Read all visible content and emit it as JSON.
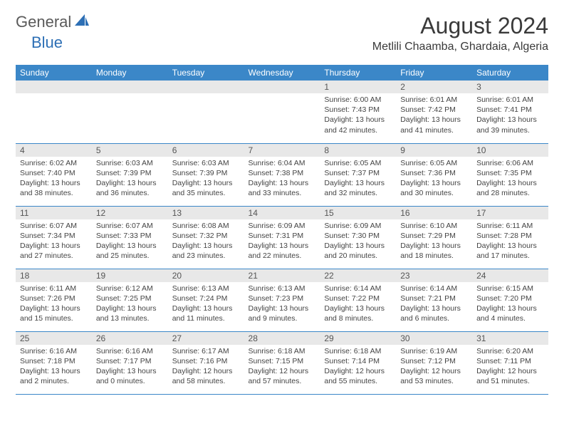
{
  "logo": {
    "text1": "General",
    "text2": "Blue"
  },
  "title": "August 2024",
  "location": "Metlili Chaamba, Ghardaia, Algeria",
  "colors": {
    "header_blue": "#3b87c8",
    "daynum_bg": "#e8e8e8",
    "text": "#444444",
    "logo_gray": "#5a5a5a",
    "logo_blue": "#2d6fb5"
  },
  "weekdays": [
    "Sunday",
    "Monday",
    "Tuesday",
    "Wednesday",
    "Thursday",
    "Friday",
    "Saturday"
  ],
  "weeks": [
    [
      null,
      null,
      null,
      null,
      {
        "n": "1",
        "sr": "Sunrise: 6:00 AM",
        "ss": "Sunset: 7:43 PM",
        "dl": "Daylight: 13 hours and 42 minutes."
      },
      {
        "n": "2",
        "sr": "Sunrise: 6:01 AM",
        "ss": "Sunset: 7:42 PM",
        "dl": "Daylight: 13 hours and 41 minutes."
      },
      {
        "n": "3",
        "sr": "Sunrise: 6:01 AM",
        "ss": "Sunset: 7:41 PM",
        "dl": "Daylight: 13 hours and 39 minutes."
      }
    ],
    [
      {
        "n": "4",
        "sr": "Sunrise: 6:02 AM",
        "ss": "Sunset: 7:40 PM",
        "dl": "Daylight: 13 hours and 38 minutes."
      },
      {
        "n": "5",
        "sr": "Sunrise: 6:03 AM",
        "ss": "Sunset: 7:39 PM",
        "dl": "Daylight: 13 hours and 36 minutes."
      },
      {
        "n": "6",
        "sr": "Sunrise: 6:03 AM",
        "ss": "Sunset: 7:39 PM",
        "dl": "Daylight: 13 hours and 35 minutes."
      },
      {
        "n": "7",
        "sr": "Sunrise: 6:04 AM",
        "ss": "Sunset: 7:38 PM",
        "dl": "Daylight: 13 hours and 33 minutes."
      },
      {
        "n": "8",
        "sr": "Sunrise: 6:05 AM",
        "ss": "Sunset: 7:37 PM",
        "dl": "Daylight: 13 hours and 32 minutes."
      },
      {
        "n": "9",
        "sr": "Sunrise: 6:05 AM",
        "ss": "Sunset: 7:36 PM",
        "dl": "Daylight: 13 hours and 30 minutes."
      },
      {
        "n": "10",
        "sr": "Sunrise: 6:06 AM",
        "ss": "Sunset: 7:35 PM",
        "dl": "Daylight: 13 hours and 28 minutes."
      }
    ],
    [
      {
        "n": "11",
        "sr": "Sunrise: 6:07 AM",
        "ss": "Sunset: 7:34 PM",
        "dl": "Daylight: 13 hours and 27 minutes."
      },
      {
        "n": "12",
        "sr": "Sunrise: 6:07 AM",
        "ss": "Sunset: 7:33 PM",
        "dl": "Daylight: 13 hours and 25 minutes."
      },
      {
        "n": "13",
        "sr": "Sunrise: 6:08 AM",
        "ss": "Sunset: 7:32 PM",
        "dl": "Daylight: 13 hours and 23 minutes."
      },
      {
        "n": "14",
        "sr": "Sunrise: 6:09 AM",
        "ss": "Sunset: 7:31 PM",
        "dl": "Daylight: 13 hours and 22 minutes."
      },
      {
        "n": "15",
        "sr": "Sunrise: 6:09 AM",
        "ss": "Sunset: 7:30 PM",
        "dl": "Daylight: 13 hours and 20 minutes."
      },
      {
        "n": "16",
        "sr": "Sunrise: 6:10 AM",
        "ss": "Sunset: 7:29 PM",
        "dl": "Daylight: 13 hours and 18 minutes."
      },
      {
        "n": "17",
        "sr": "Sunrise: 6:11 AM",
        "ss": "Sunset: 7:28 PM",
        "dl": "Daylight: 13 hours and 17 minutes."
      }
    ],
    [
      {
        "n": "18",
        "sr": "Sunrise: 6:11 AM",
        "ss": "Sunset: 7:26 PM",
        "dl": "Daylight: 13 hours and 15 minutes."
      },
      {
        "n": "19",
        "sr": "Sunrise: 6:12 AM",
        "ss": "Sunset: 7:25 PM",
        "dl": "Daylight: 13 hours and 13 minutes."
      },
      {
        "n": "20",
        "sr": "Sunrise: 6:13 AM",
        "ss": "Sunset: 7:24 PM",
        "dl": "Daylight: 13 hours and 11 minutes."
      },
      {
        "n": "21",
        "sr": "Sunrise: 6:13 AM",
        "ss": "Sunset: 7:23 PM",
        "dl": "Daylight: 13 hours and 9 minutes."
      },
      {
        "n": "22",
        "sr": "Sunrise: 6:14 AM",
        "ss": "Sunset: 7:22 PM",
        "dl": "Daylight: 13 hours and 8 minutes."
      },
      {
        "n": "23",
        "sr": "Sunrise: 6:14 AM",
        "ss": "Sunset: 7:21 PM",
        "dl": "Daylight: 13 hours and 6 minutes."
      },
      {
        "n": "24",
        "sr": "Sunrise: 6:15 AM",
        "ss": "Sunset: 7:20 PM",
        "dl": "Daylight: 13 hours and 4 minutes."
      }
    ],
    [
      {
        "n": "25",
        "sr": "Sunrise: 6:16 AM",
        "ss": "Sunset: 7:18 PM",
        "dl": "Daylight: 13 hours and 2 minutes."
      },
      {
        "n": "26",
        "sr": "Sunrise: 6:16 AM",
        "ss": "Sunset: 7:17 PM",
        "dl": "Daylight: 13 hours and 0 minutes."
      },
      {
        "n": "27",
        "sr": "Sunrise: 6:17 AM",
        "ss": "Sunset: 7:16 PM",
        "dl": "Daylight: 12 hours and 58 minutes."
      },
      {
        "n": "28",
        "sr": "Sunrise: 6:18 AM",
        "ss": "Sunset: 7:15 PM",
        "dl": "Daylight: 12 hours and 57 minutes."
      },
      {
        "n": "29",
        "sr": "Sunrise: 6:18 AM",
        "ss": "Sunset: 7:14 PM",
        "dl": "Daylight: 12 hours and 55 minutes."
      },
      {
        "n": "30",
        "sr": "Sunrise: 6:19 AM",
        "ss": "Sunset: 7:12 PM",
        "dl": "Daylight: 12 hours and 53 minutes."
      },
      {
        "n": "31",
        "sr": "Sunrise: 6:20 AM",
        "ss": "Sunset: 7:11 PM",
        "dl": "Daylight: 12 hours and 51 minutes."
      }
    ]
  ]
}
